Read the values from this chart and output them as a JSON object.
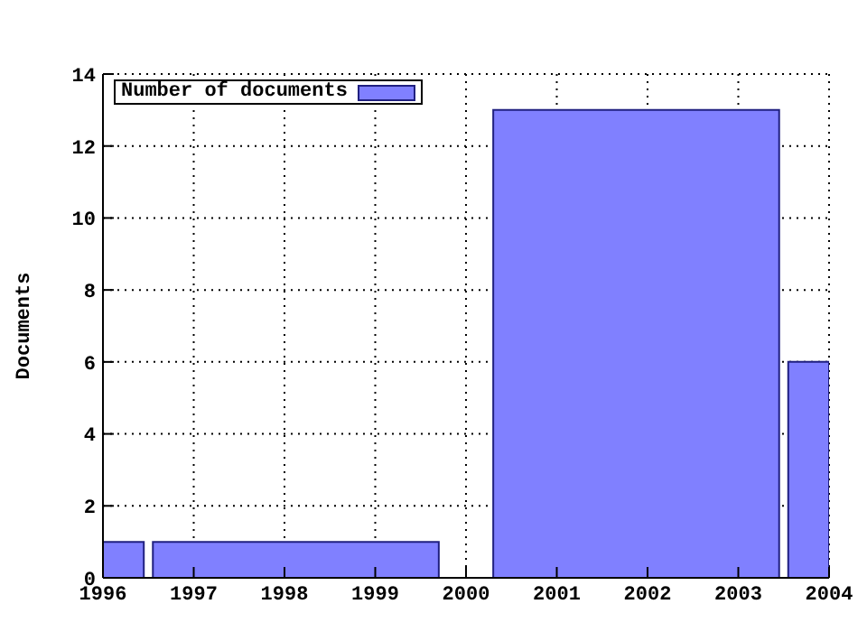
{
  "chart_data": {
    "type": "histogram",
    "ylabel": "Documents",
    "bins": [
      1996,
      1996.45,
      1996.55,
      1999.7,
      2000.3,
      2003.45,
      2003.55,
      2004
    ],
    "series": [
      {
        "name": "Number of documents",
        "color": "#8080ff",
        "values": [
          1,
          0,
          1,
          0,
          13,
          0,
          6
        ]
      }
    ],
    "xlim": [
      1996,
      2004
    ],
    "xticks": [
      1996,
      1997,
      1998,
      1999,
      2000,
      2001,
      2002,
      2003,
      2004
    ],
    "ylim": [
      0,
      14
    ],
    "yticks": [
      0,
      2,
      4,
      6,
      8,
      10,
      12,
      14
    ],
    "grid": true,
    "legend": "top left"
  }
}
